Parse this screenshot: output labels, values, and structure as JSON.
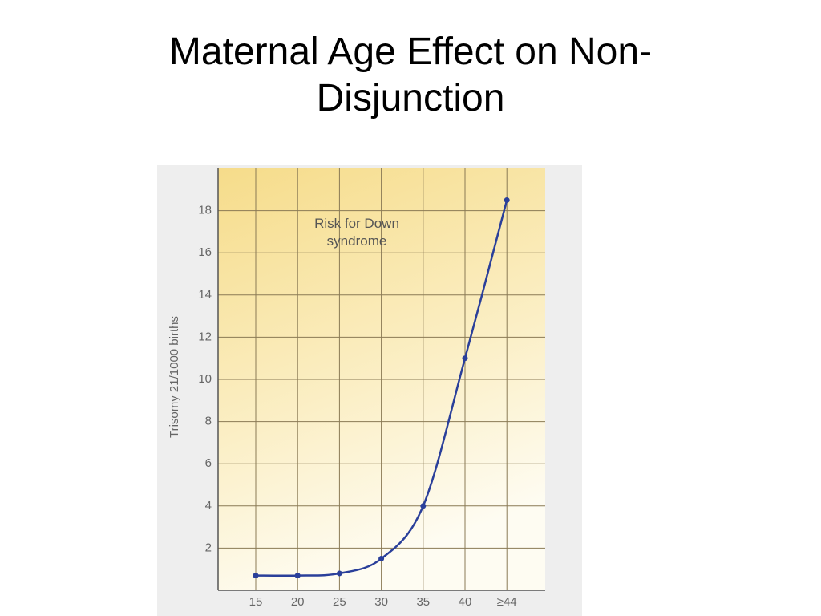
{
  "chart_data": {
    "type": "line",
    "title": "Maternal Age Effect on Non-Disjunction",
    "y_label": "Trisomy 21/1000 births",
    "annotation": "Risk for Down syndrome",
    "categories": [
      "15",
      "20",
      "25",
      "30",
      "35",
      "40",
      "≥44"
    ],
    "series": [
      {
        "name": "Risk for Down syndrome",
        "color": "#2a3f9a",
        "values": [
          0.7,
          0.7,
          0.8,
          1.5,
          4,
          11,
          18.5
        ]
      }
    ],
    "ylim": [
      0,
      20
    ],
    "yticks": [
      2,
      4,
      6,
      8,
      10,
      12,
      14,
      16,
      18
    ],
    "grid": true
  }
}
